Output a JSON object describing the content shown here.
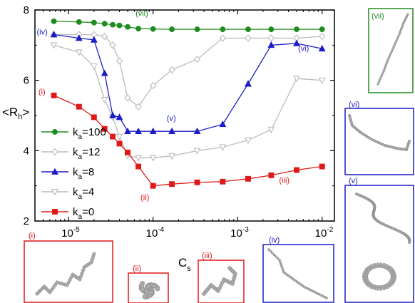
{
  "chart_data": {
    "type": "line",
    "xlabel": "C",
    "xlabel_sub": "s",
    "ylabel": "<R",
    "ylabel_sub": "h",
    "ylabel_close": ">",
    "xscale": "log",
    "xlim": [
      4e-06,
      0.014
    ],
    "ylim": [
      2,
      8
    ],
    "yticks": [
      "2",
      "4",
      "6",
      "8"
    ],
    "xticks": [
      {
        "base": "10",
        "exp": "-5",
        "value": 1e-05
      },
      {
        "base": "10",
        "exp": "-4",
        "value": 0.0001
      },
      {
        "base": "10",
        "exp": "-3",
        "value": 0.001
      },
      {
        "base": "10",
        "exp": "-2",
        "value": 0.01
      }
    ],
    "legend_placement": "left",
    "series": [
      {
        "name": "k",
        "name_sub": "a",
        "name_tail": "=100",
        "color": "#1e8c1e",
        "marker": "circle",
        "filled": true,
        "x": [
          6.7e-06,
          1.33e-05,
          2e-05,
          2.67e-05,
          3.33e-05,
          4e-05,
          5e-05,
          6.7e-05,
          0.0001,
          0.000167,
          0.000333,
          0.000667,
          0.001333,
          0.0025,
          0.005,
          0.01
        ],
        "y": [
          7.68,
          7.66,
          7.64,
          7.61,
          7.58,
          7.56,
          7.52,
          7.47,
          7.46,
          7.45,
          7.45,
          7.45,
          7.45,
          7.45,
          7.45,
          7.45
        ]
      },
      {
        "name": "k",
        "name_sub": "a",
        "name_tail": "=12",
        "color": "#bbbbbb",
        "marker": "diamond",
        "filled": false,
        "x": [
          6.7e-06,
          1.33e-05,
          2e-05,
          2.67e-05,
          3.33e-05,
          4e-05,
          5e-05,
          6.7e-05,
          0.0001,
          0.000167,
          0.000333,
          0.000667,
          0.001333,
          0.0025,
          0.005,
          0.01
        ],
        "y": [
          7.3,
          7.3,
          7.3,
          7.25,
          7.0,
          6.55,
          5.5,
          5.25,
          5.85,
          6.3,
          6.6,
          7.2,
          7.2,
          7.2,
          7.2,
          7.25
        ]
      },
      {
        "name": "k",
        "name_sub": "a",
        "name_tail": "=8",
        "color": "#1c1cc8",
        "marker": "triangle",
        "filled": true,
        "x": [
          6.7e-06,
          1.33e-05,
          2e-05,
          2.67e-05,
          3.33e-05,
          4e-05,
          5e-05,
          6.7e-05,
          0.0001,
          0.000167,
          0.000333,
          0.000667,
          0.001333,
          0.0025,
          0.005,
          0.01
        ],
        "y": [
          7.3,
          7.2,
          7.15,
          6.2,
          5.0,
          4.95,
          4.55,
          4.55,
          4.55,
          4.55,
          4.55,
          4.75,
          5.9,
          7.0,
          7.05,
          6.9
        ]
      },
      {
        "name": "k",
        "name_sub": "a",
        "name_tail": "=4",
        "color": "#bbbbbb",
        "marker": "triangle-down",
        "filled": false,
        "x": [
          6.7e-06,
          1.33e-05,
          2e-05,
          2.67e-05,
          3.33e-05,
          4e-05,
          5e-05,
          6.7e-05,
          0.0001,
          0.000167,
          0.000333,
          0.000667,
          0.001333,
          0.0025,
          0.005,
          0.01
        ],
        "y": [
          7.0,
          6.8,
          6.4,
          5.45,
          4.95,
          4.4,
          3.85,
          3.8,
          3.8,
          3.85,
          4.0,
          4.1,
          4.3,
          4.6,
          6.05,
          6.0
        ]
      },
      {
        "name": "k",
        "name_sub": "a",
        "name_tail": "=0",
        "color": "#e01818",
        "marker": "square",
        "filled": true,
        "x": [
          6.7e-06,
          1.33e-05,
          2e-05,
          2.67e-05,
          3.33e-05,
          4e-05,
          5e-05,
          6.7e-05,
          0.0001,
          0.000167,
          0.000333,
          0.000667,
          0.001333,
          0.0025,
          0.005,
          0.01
        ],
        "y": [
          5.57,
          5.25,
          4.95,
          4.62,
          4.4,
          4.2,
          3.95,
          3.55,
          3.0,
          3.05,
          3.1,
          3.12,
          3.2,
          3.3,
          3.45,
          3.55
        ]
      }
    ],
    "annotations": [
      {
        "text": "(vii)",
        "color": "#1e8c1e",
        "x": 6.2e-05,
        "y": 7.83
      },
      {
        "text": "(iv)",
        "color": "#1c1cc8",
        "x": 4.2e-06,
        "y": 7.3
      },
      {
        "text": "(vi)",
        "color": "#1c1cc8",
        "x": 0.0052,
        "y": 6.83
      },
      {
        "text": "(v)",
        "color": "#1c1cc8",
        "x": 0.000145,
        "y": 4.85
      },
      {
        "text": "(i)",
        "color": "#e01818",
        "x": 4.4e-06,
        "y": 5.6
      },
      {
        "text": "(ii)",
        "color": "#e01818",
        "x": 7.1e-05,
        "y": 2.6
      },
      {
        "text": "(iii)",
        "color": "#e01818",
        "x": 0.0031,
        "y": 3.08
      }
    ]
  },
  "insets": [
    {
      "label": "(i)",
      "color": "#e01818"
    },
    {
      "label": "(ii)",
      "color": "#e01818"
    },
    {
      "label": "(iii)",
      "color": "#e01818"
    },
    {
      "label": "(iv)",
      "color": "#1c1cc8"
    },
    {
      "label": "(v)",
      "color": "#1c1cc8"
    },
    {
      "label": "(vi)",
      "color": "#1c1cc8"
    },
    {
      "label": "(vii)",
      "color": "#1e8c1e"
    }
  ],
  "bead_color": "#aaaaaa"
}
